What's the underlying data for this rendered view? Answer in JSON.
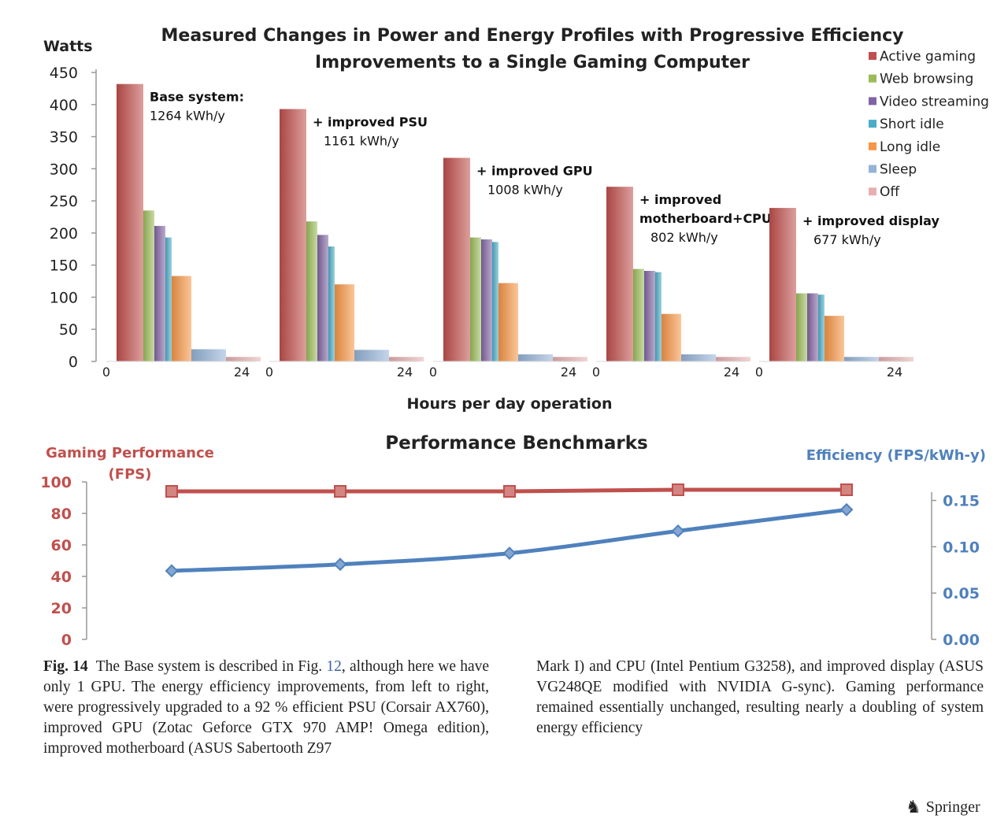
{
  "chart_data": [
    {
      "type": "bar",
      "title": "Measured Changes in Power and Energy Profiles with Progressive Efficiency Improvements to a Single Gaming Computer",
      "title_lines": [
        "Measured Changes in Power and Energy Profiles with Progressive Efficiency",
        "Improvements to a Single Gaming Computer"
      ],
      "ylabel": "Watts",
      "xlabel": "Hours per day operation",
      "ylim": [
        0,
        450
      ],
      "yticks": [
        "0",
        "50",
        "100",
        "150",
        "200",
        "250",
        "300",
        "350",
        "400",
        "450"
      ],
      "x_tick_labels": [
        "0",
        "24"
      ],
      "legend_position": "right",
      "modes": [
        {
          "name": "Active gaming",
          "color": "#c0504d"
        },
        {
          "name": "Web browsing",
          "color": "#9bbb59"
        },
        {
          "name": "Video streaming",
          "color": "#8064a2"
        },
        {
          "name": "Short idle",
          "color": "#4bacc6"
        },
        {
          "name": "Long idle",
          "color": "#f79646"
        },
        {
          "name": "Sleep",
          "color": "#95b3d7"
        },
        {
          "name": "Off",
          "color": "#e6b0b0"
        }
      ],
      "panels": [
        {
          "label_lines": [
            "Base system:",
            "1264 kWh/y"
          ],
          "bold_lines": [
            0
          ],
          "values": [
            432,
            235,
            211,
            193,
            133,
            19,
            7
          ]
        },
        {
          "label_lines": [
            "+ improved PSU",
            "1161 kWh/y"
          ],
          "bold_lines": [
            0
          ],
          "values": [
            393,
            218,
            197,
            179,
            120,
            18,
            7
          ]
        },
        {
          "label_lines": [
            "+ improved GPU",
            "1008 kWh/y"
          ],
          "bold_lines": [
            0
          ],
          "values": [
            317,
            193,
            190,
            186,
            122,
            11,
            7
          ]
        },
        {
          "label_lines": [
            "+ improved",
            "motherboard+CPU",
            "802 kWh/y"
          ],
          "bold_lines": [
            0,
            1
          ],
          "values": [
            272,
            144,
            141,
            139,
            74,
            11,
            7
          ]
        },
        {
          "label_lines": [
            "+ improved display",
            "677 kWh/y"
          ],
          "bold_lines": [
            0
          ],
          "values": [
            239,
            106,
            106,
            104,
            71,
            7,
            7
          ]
        }
      ]
    },
    {
      "type": "line",
      "title": "Performance Benchmarks",
      "y_left_label_lines": [
        "Gaming Performance",
        "(FPS)"
      ],
      "y_right_label": "Efficiency (FPS/kWh-y)",
      "ylim_left": [
        0,
        100
      ],
      "ylim_right": [
        0,
        0.17
      ],
      "yticks_left": [
        "0",
        "20",
        "40",
        "60",
        "80",
        "100"
      ],
      "yticks_right": [
        "0.00",
        "0.05",
        "0.10",
        "0.15"
      ],
      "grid": false,
      "series": [
        {
          "axis": "left",
          "color": "#c0504d",
          "marker": "square",
          "values": [
            94,
            94,
            94,
            95,
            95
          ]
        },
        {
          "axis": "right",
          "color": "#4f81bd",
          "marker": "diamond",
          "values": [
            0.074,
            0.081,
            0.093,
            0.117,
            0.14
          ]
        }
      ]
    }
  ],
  "caption": {
    "label": "Fig. 14",
    "left_before_ref": "The Base system is described in Fig.",
    "ref": "12",
    "left_after_ref": ", although here we have only 1 GPU. The energy efficiency improvements, from left to right, were progressively upgraded to a 92 % efficient PSU (Corsair AX760), improved GPU (Zotac Geforce GTX 970 AMP! Omega edition), improved motherboard (ASUS Sabertooth Z97",
    "right": "Mark I) and CPU (Intel Pentium G3258), and improved display (ASUS VG248QE modified with NVIDIA G-sync). Gaming performance remained essentially unchanged, resulting nearly a doubling of system energy efficiency"
  },
  "publisher": {
    "icon": "springer-horse-icon",
    "name": "Springer"
  }
}
